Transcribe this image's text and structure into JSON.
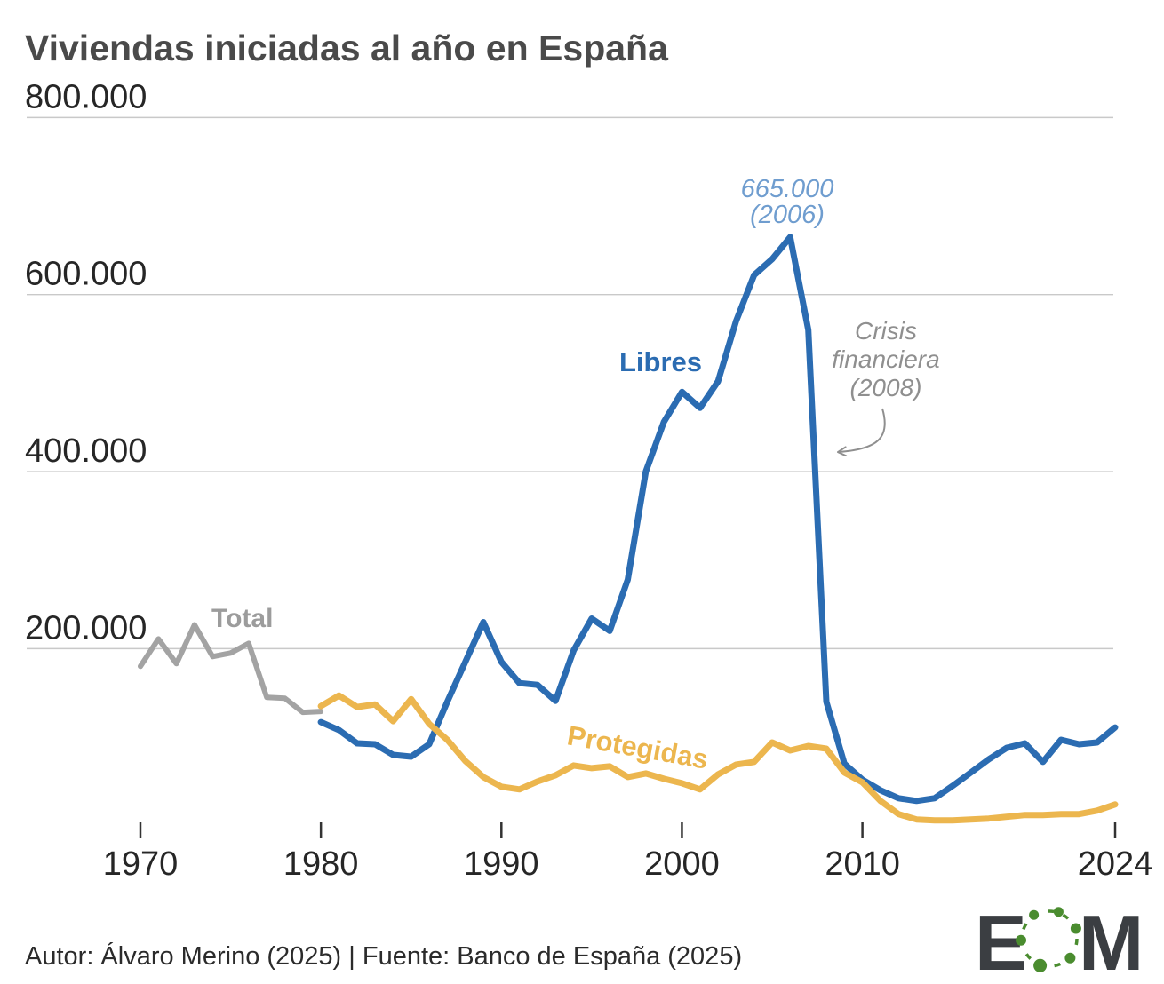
{
  "title": "Viviendas iniciadas al año en España",
  "footer": "Autor: Álvaro Merino (2025) | Fuente: Banco de España (2025)",
  "logo": {
    "letter_e": "E",
    "letter_m": "M",
    "dark_color": "#3b3e42",
    "green_color": "#4a8c2f"
  },
  "colors": {
    "title": "#4a4a4a",
    "axis_label": "#262626",
    "grid": "#c9c9c9",
    "tick": "#333333",
    "footer": "#2b2b2b"
  },
  "chart_data": {
    "type": "line",
    "title": "Viviendas iniciadas al año en España",
    "xlabel": "",
    "ylabel": "",
    "ylim": [
      0,
      800000
    ],
    "grid": "horizontal",
    "legend_position": "inline-labels",
    "y_ticks": [
      {
        "value": 800000,
        "label": "800.000"
      },
      {
        "value": 600000,
        "label": "600.000"
      },
      {
        "value": 400000,
        "label": "400.000"
      },
      {
        "value": 200000,
        "label": "200.000"
      }
    ],
    "x_ticks": [
      {
        "year": 1970,
        "label": "1970"
      },
      {
        "year": 1980,
        "label": "1980"
      },
      {
        "year": 1990,
        "label": "1990"
      },
      {
        "year": 2000,
        "label": "2000"
      },
      {
        "year": 2010,
        "label": "2010"
      },
      {
        "year": 2024,
        "label": "2024"
      }
    ],
    "series": [
      {
        "name": "Total",
        "color": "#a3a3a3",
        "label_color": "#9c9c9c",
        "start_year": 1970,
        "values": [
          180000,
          211000,
          183000,
          227000,
          191000,
          195000,
          206000,
          145000,
          144000,
          128000,
          129000
        ]
      },
      {
        "name": "Libres",
        "color": "#2b6cb2",
        "label_color": "#2b6cb2",
        "start_year": 1980,
        "values": [
          117000,
          108000,
          93000,
          92000,
          80000,
          78000,
          92000,
          140000,
          185000,
          230000,
          185000,
          161000,
          159000,
          141000,
          198000,
          234000,
          220000,
          278000,
          400000,
          456000,
          490000,
          472000,
          502000,
          570000,
          622000,
          640000,
          665000,
          560000,
          140000,
          70000,
          52000,
          40000,
          31000,
          28000,
          31000,
          45000,
          60000,
          75000,
          88000,
          93000,
          72000,
          97000,
          92000,
          94000,
          111000
        ]
      },
      {
        "name": "Protegidas",
        "color": "#ecb64e",
        "label_color": "#ecb64e",
        "start_year": 1980,
        "values": [
          135000,
          147000,
          134000,
          137000,
          118000,
          143000,
          115000,
          97000,
          73000,
          55000,
          44000,
          41000,
          50000,
          57000,
          68000,
          65000,
          67000,
          55000,
          59000,
          53000,
          48000,
          41000,
          58000,
          69000,
          72000,
          94000,
          85000,
          90000,
          87000,
          60000,
          49000,
          28000,
          13000,
          7000,
          6000,
          6000,
          7000,
          8000,
          10000,
          12000,
          12000,
          13000,
          13000,
          17000,
          24000
        ]
      }
    ],
    "annotations": {
      "peak": {
        "line1": "665.000",
        "line2": "(2006)",
        "color": "#6f9dcf"
      },
      "crisis": {
        "line1": "Crisis",
        "line2": "financiera",
        "line3": "(2008)",
        "color": "#8f8f8f"
      }
    }
  }
}
